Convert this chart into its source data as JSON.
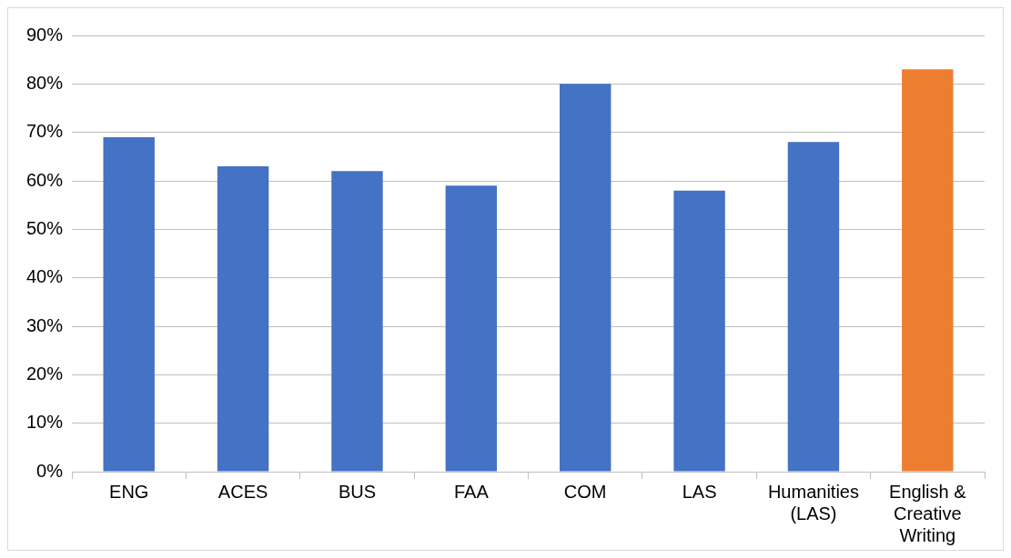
{
  "chart_data": {
    "type": "bar",
    "categories": [
      "ENG",
      "ACES",
      "BUS",
      "FAA",
      "COM",
      "LAS",
      "Humanities (LAS)",
      "English & Creative Writing"
    ],
    "values": [
      69,
      63,
      62,
      59,
      80,
      58,
      68,
      83
    ],
    "colors": [
      "#4472c4",
      "#4472c4",
      "#4472c4",
      "#4472c4",
      "#4472c4",
      "#4472c4",
      "#4472c4",
      "#ed7d31"
    ],
    "ylim": [
      0,
      90
    ],
    "yticks": [
      {
        "value": 0,
        "label": "0%"
      },
      {
        "value": 10,
        "label": "10%"
      },
      {
        "value": 20,
        "label": "20%"
      },
      {
        "value": 30,
        "label": "30%"
      },
      {
        "value": 40,
        "label": "40%"
      },
      {
        "value": 50,
        "label": "50%"
      },
      {
        "value": 60,
        "label": "60%"
      },
      {
        "value": 70,
        "label": "70%"
      },
      {
        "value": 80,
        "label": "80%"
      },
      {
        "value": 90,
        "label": "90%"
      }
    ],
    "grid": "y",
    "legend": false
  }
}
